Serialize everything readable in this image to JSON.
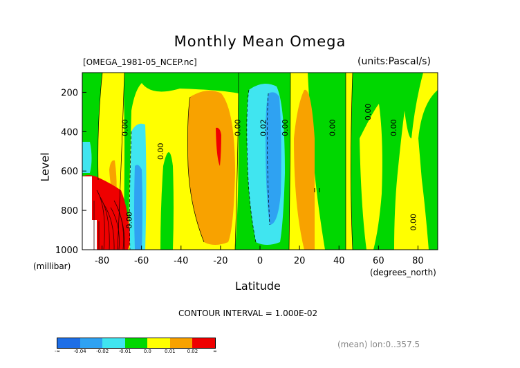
{
  "title": "Monthly Mean Omega",
  "file_label": "[OMEGA_1981-05_NCEP.nc]",
  "units_label": "(units:Pascal/s)",
  "contour_interval": "CONTOUR INTERVAL = 1.000E-02",
  "footer": "(mean) lon:0..357.5",
  "colorbar": {
    "colors": [
      "#1e6ee6",
      "#2fa2f2",
      "#40e5f0",
      "#00d700",
      "#ffff00",
      "#f8a200",
      "#ef0000"
    ],
    "labels": [
      "-∞",
      "-0.04",
      "-0.02",
      "-0.01",
      "0.0",
      "0.01",
      "0.02",
      "∞"
    ]
  },
  "chart_data": {
    "type": "contour",
    "title": "Monthly Mean Omega",
    "xlabel": "Latitude",
    "xunit": "(degrees_north)",
    "ylabel": "Level",
    "yunit": "(millibar)",
    "xlim": [
      -90,
      90
    ],
    "ylim": [
      1000,
      100
    ],
    "xticks": [
      "-80",
      "-60",
      "-40",
      "-20",
      "0",
      "20",
      "40",
      "60",
      "80"
    ],
    "xtick_values": [
      -80,
      -60,
      -40,
      -20,
      0,
      20,
      40,
      60,
      80
    ],
    "yticks": [
      "200",
      "400",
      "600",
      "800",
      "1000"
    ],
    "ytick_values": [
      200,
      400,
      600,
      800,
      1000
    ],
    "contour_labels": [
      {
        "text": "0.00",
        "lat": -67,
        "level": 380
      },
      {
        "text": "0.00",
        "lat": -49,
        "level": 500
      },
      {
        "text": "0.00",
        "lat": -65,
        "level": 850
      },
      {
        "text": "0.00",
        "lat": -10,
        "level": 380
      },
      {
        "text": "0.02",
        "lat": 3,
        "level": 380
      },
      {
        "text": "0.00",
        "lat": 14,
        "level": 380
      },
      {
        "text": "0.00",
        "lat": 38,
        "level": 380
      },
      {
        "text": "0.00",
        "lat": 56,
        "level": 300
      },
      {
        "text": "0.00",
        "lat": 69,
        "level": 380
      },
      {
        "text": "0.00",
        "lat": 79,
        "level": 860
      }
    ]
  }
}
